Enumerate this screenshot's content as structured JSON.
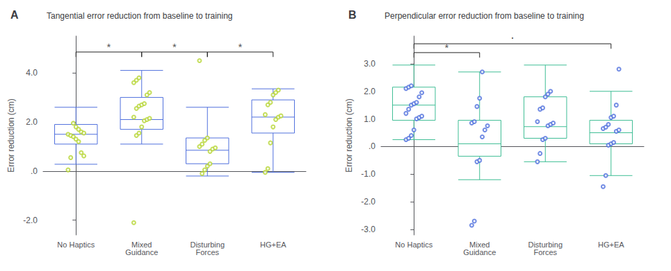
{
  "chart_data": [
    {
      "type": "box",
      "label": "A",
      "title": "Tangential error reduction from baseline to training",
      "ylabel": "Error reduction (cm)",
      "ylim": [
        -2.6,
        5.5
      ],
      "yticks": [
        {
          "value": -2.0,
          "label": "-2.0"
        },
        {
          "value": 0.0,
          "label": ".0"
        },
        {
          "value": 2.0,
          "label": "2.0"
        },
        {
          "value": 4.0,
          "label": "4.0"
        }
      ],
      "grid": false,
      "categories": [
        "No Haptics",
        "Mixed\nGuidance",
        "Disturbing\nForces",
        "HG+EA"
      ],
      "boxes": [
        {
          "median": 1.5,
          "q1": 1.1,
          "q3": 1.9,
          "whislo": 0.28,
          "whishi": 2.6,
          "fliers": [
            0.05,
            0.55,
            1.95,
            1.8,
            1.7,
            1.6,
            1.55,
            1.5,
            1.45,
            1.4,
            1.3,
            1.2,
            0.75,
            0.62
          ]
        },
        {
          "median": 2.1,
          "q1": 1.7,
          "q3": 3.0,
          "whislo": 1.1,
          "whishi": 4.1,
          "fliers": [
            -2.1,
            1.45,
            1.55,
            1.8,
            2.05,
            2.1,
            2.15,
            2.2,
            2.55,
            2.65,
            2.7,
            2.75,
            3.1,
            3.2,
            3.6,
            3.7,
            3.8
          ]
        },
        {
          "median": 0.85,
          "q1": 0.3,
          "q3": 1.35,
          "whislo": -0.2,
          "whishi": 2.6,
          "fliers": [
            4.5,
            -0.1,
            0.05,
            0.2,
            0.8,
            0.9,
            0.95,
            1.0,
            1.1,
            1.25,
            1.35,
            0.3
          ]
        },
        {
          "median": 2.2,
          "q1": 1.55,
          "q3": 2.9,
          "whislo": -0.05,
          "whishi": 3.35,
          "fliers": [
            -0.05,
            0.1,
            1.15,
            1.8,
            2.1,
            2.2,
            2.25,
            2.3,
            2.7,
            2.8,
            3.1,
            3.2,
            3.3
          ]
        }
      ],
      "brackets": [
        {
          "from": "No Haptics",
          "to": "Mixed\nGuidance",
          "y": 4.85,
          "label": "*"
        },
        {
          "from": "Mixed\nGuidance",
          "to": "Disturbing\nForces",
          "y": 4.85,
          "label": "*"
        },
        {
          "from": "Disturbing\nForces",
          "to": "HG+EA",
          "y": 4.85,
          "label": "*"
        }
      ]
    },
    {
      "type": "box",
      "label": "B",
      "title": "Perpendicular error reduction from baseline to training",
      "ylabel": "Error reduction (cm)",
      "ylim": [
        -3.2,
        4.0
      ],
      "yticks": [
        {
          "value": -3.0,
          "label": "-3.0"
        },
        {
          "value": -2.0,
          "label": "-2.0"
        },
        {
          "value": -1.0,
          "label": "-1.0"
        },
        {
          "value": 0.0,
          "label": ".0"
        },
        {
          "value": 1.0,
          "label": "1.0"
        },
        {
          "value": 2.0,
          "label": "2.0"
        },
        {
          "value": 3.0,
          "label": "3.0"
        }
      ],
      "grid": false,
      "categories": [
        "No Haptics",
        "Mixed\nGuidance",
        "Disturbing\nForces",
        "HG+EA"
      ],
      "boxes": [
        {
          "median": 1.5,
          "q1": 0.95,
          "q3": 2.15,
          "whislo": 0.25,
          "whishi": 2.95,
          "fliers": [
            0.25,
            0.3,
            0.4,
            0.6,
            1.0,
            1.05,
            1.1,
            1.2,
            1.35,
            1.5,
            1.55,
            1.6,
            1.8,
            1.95,
            2.1,
            2.15,
            2.2
          ]
        },
        {
          "median": 0.1,
          "q1": -0.35,
          "q3": 0.95,
          "whislo": -1.2,
          "whishi": 2.7,
          "fliers": [
            -2.85,
            -2.7,
            -0.55,
            -0.5,
            0.35,
            0.6,
            0.75,
            0.85,
            0.9,
            1.45,
            1.75,
            2.7
          ]
        },
        {
          "median": 0.72,
          "q1": 0.3,
          "q3": 1.8,
          "whislo": -0.55,
          "whishi": 2.95,
          "fliers": [
            -0.55,
            -0.25,
            0.25,
            0.3,
            0.75,
            0.8,
            0.85,
            0.9,
            1.35,
            1.4,
            1.8,
            1.9,
            2.0
          ]
        },
        {
          "median": 0.5,
          "q1": 0.1,
          "q3": 0.95,
          "whislo": -1.05,
          "whishi": 2.0,
          "fliers": [
            -1.45,
            -1.05,
            0.05,
            0.1,
            0.15,
            0.55,
            0.6,
            0.65,
            0.7,
            0.8,
            1.05,
            1.1,
            1.5,
            2.8
          ]
        }
      ],
      "brackets": [
        {
          "from": "No Haptics",
          "to": "Mixed\nGuidance",
          "y": 3.4,
          "label": "*"
        },
        {
          "from": "No Haptics",
          "to": "HG+EA",
          "y": 3.72,
          "label": "·"
        }
      ]
    }
  ]
}
